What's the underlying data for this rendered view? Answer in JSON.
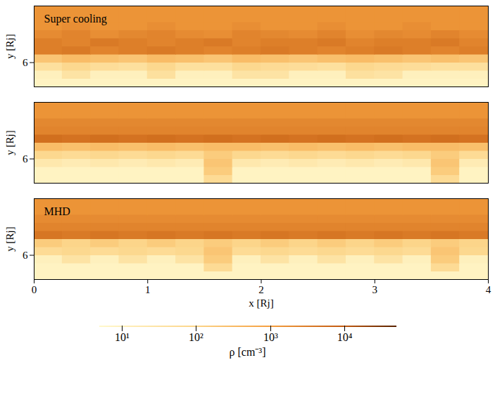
{
  "chart_data": [
    {
      "type": "heatmap",
      "title": "Super cooling",
      "ylabel": "y [Rj]",
      "xlim": [
        0,
        4
      ],
      "ylim": [
        5.85,
        6.35
      ],
      "yticks": [
        6
      ],
      "tick_labels": "y",
      "x_bins": [
        0,
        0.25,
        0.5,
        0.75,
        1,
        1.25,
        1.5,
        1.75,
        2,
        2.25,
        2.5,
        2.75,
        3,
        3.25,
        3.5,
        3.75,
        4
      ],
      "y_bins": [
        5.85,
        5.9,
        5.95,
        6.0,
        6.05,
        6.1,
        6.15,
        6.2,
        6.25,
        6.3,
        6.35
      ],
      "values": [
        [
          8,
          8,
          8,
          8,
          8,
          8,
          8,
          8,
          8,
          8,
          8,
          8,
          8,
          8,
          8,
          8
        ],
        [
          10,
          30,
          10,
          10,
          40,
          10,
          10,
          30,
          30,
          10,
          10,
          40,
          30,
          10,
          10,
          10
        ],
        [
          40,
          80,
          50,
          40,
          80,
          40,
          40,
          80,
          60,
          50,
          40,
          80,
          60,
          50,
          40,
          40
        ],
        [
          200,
          300,
          250,
          200,
          300,
          250,
          200,
          300,
          250,
          200,
          250,
          300,
          250,
          200,
          250,
          200
        ],
        [
          3000,
          3500,
          2500,
          3000,
          3500,
          3000,
          2500,
          3000,
          3500,
          3000,
          2500,
          3000,
          3500,
          3000,
          2500,
          3000
        ],
        [
          3000,
          2500,
          3500,
          3000,
          2500,
          3000,
          3500,
          2500,
          3000,
          3000,
          3500,
          2500,
          3000,
          3000,
          3500,
          2500
        ],
        [
          2000,
          2500,
          1800,
          2200,
          2500,
          2000,
          1800,
          2500,
          2200,
          2000,
          2500,
          1800,
          2200,
          2000,
          2500,
          2000
        ],
        [
          1500,
          1800,
          1500,
          1500,
          1800,
          1500,
          1500,
          1800,
          1500,
          1500,
          1800,
          1500,
          1500,
          1800,
          1500,
          1500
        ],
        [
          1500,
          1500,
          1500,
          1500,
          1500,
          1500,
          1500,
          1500,
          1500,
          1500,
          1500,
          1500,
          1500,
          1500,
          1500,
          1500
        ],
        [
          1500,
          1500,
          1500,
          1500,
          1500,
          1500,
          1500,
          1500,
          1500,
          1500,
          1500,
          1500,
          1500,
          1500,
          1500,
          1500
        ]
      ]
    },
    {
      "type": "heatmap",
      "ylabel": "y [Rj]",
      "xlim": [
        0,
        4
      ],
      "ylim": [
        5.85,
        6.35
      ],
      "yticks": [
        6
      ],
      "tick_labels": "y",
      "x_bins": [
        0,
        0.25,
        0.5,
        0.75,
        1,
        1.25,
        1.5,
        1.75,
        2,
        2.25,
        2.5,
        2.75,
        3,
        3.25,
        3.5,
        3.75,
        4
      ],
      "y_bins": [
        5.85,
        5.9,
        5.95,
        6.0,
        6.05,
        6.1,
        6.15,
        6.2,
        6.25,
        6.3,
        6.35
      ],
      "values": [
        [
          8,
          8,
          8,
          8,
          8,
          8,
          60,
          8,
          8,
          8,
          8,
          8,
          8,
          8,
          60,
          8
        ],
        [
          8,
          8,
          8,
          8,
          8,
          8,
          150,
          8,
          8,
          8,
          8,
          8,
          8,
          8,
          150,
          8
        ],
        [
          20,
          15,
          20,
          15,
          20,
          15,
          200,
          20,
          15,
          20,
          15,
          20,
          15,
          20,
          200,
          15
        ],
        [
          80,
          60,
          80,
          60,
          80,
          60,
          150,
          80,
          60,
          80,
          60,
          80,
          60,
          80,
          150,
          60
        ],
        [
          300,
          250,
          300,
          250,
          300,
          250,
          300,
          300,
          250,
          300,
          250,
          300,
          250,
          300,
          300,
          250
        ],
        [
          5000,
          4500,
          5000,
          4500,
          5000,
          4500,
          5000,
          4500,
          5000,
          4500,
          5000,
          4500,
          5000,
          4500,
          5000,
          4500
        ],
        [
          2500,
          2500,
          2500,
          2500,
          2500,
          2500,
          2500,
          2500,
          2500,
          2500,
          2500,
          2500,
          2500,
          2500,
          2500,
          2500
        ],
        [
          2200,
          2200,
          2200,
          2200,
          2200,
          2200,
          2200,
          2200,
          2200,
          2200,
          2200,
          2200,
          2200,
          2200,
          2200,
          2200
        ],
        [
          1500,
          1500,
          1500,
          1500,
          1500,
          1500,
          1500,
          1500,
          1500,
          1500,
          1500,
          1500,
          1500,
          1500,
          1500,
          1500
        ],
        [
          1500,
          1500,
          1500,
          1500,
          1500,
          1500,
          1500,
          1500,
          1500,
          1500,
          1500,
          1500,
          1500,
          1500,
          1500,
          1500
        ]
      ]
    },
    {
      "type": "heatmap",
      "title": "MHD",
      "xlabel": "x [Rj]",
      "ylabel": "y [Rj]",
      "xlim": [
        0,
        4
      ],
      "ylim": [
        5.85,
        6.35
      ],
      "xticks": [
        0,
        1,
        2,
        3,
        4
      ],
      "yticks": [
        6
      ],
      "x_bins": [
        0,
        0.25,
        0.5,
        0.75,
        1,
        1.25,
        1.5,
        1.75,
        2,
        2.25,
        2.5,
        2.75,
        3,
        3.25,
        3.5,
        3.75,
        4
      ],
      "y_bins": [
        5.85,
        5.9,
        5.95,
        6.0,
        6.05,
        6.1,
        6.15,
        6.2,
        6.25,
        6.3,
        6.35
      ],
      "values": [
        [
          8,
          8,
          8,
          8,
          8,
          8,
          8,
          8,
          8,
          8,
          8,
          8,
          8,
          8,
          8,
          8
        ],
        [
          8,
          8,
          8,
          8,
          8,
          8,
          60,
          8,
          8,
          8,
          8,
          8,
          8,
          8,
          60,
          8
        ],
        [
          10,
          30,
          10,
          30,
          10,
          30,
          150,
          10,
          30,
          10,
          30,
          10,
          30,
          10,
          150,
          10
        ],
        [
          60,
          80,
          60,
          80,
          60,
          80,
          200,
          60,
          80,
          60,
          80,
          60,
          80,
          60,
          200,
          80
        ],
        [
          150,
          100,
          150,
          100,
          150,
          100,
          150,
          100,
          150,
          100,
          150,
          100,
          150,
          100,
          150,
          100
        ],
        [
          4000,
          3500,
          4000,
          3500,
          4000,
          3500,
          4000,
          3500,
          4000,
          3500,
          4000,
          3500,
          4000,
          3500,
          4000,
          3500
        ],
        [
          2500,
          2500,
          2500,
          2500,
          2500,
          2500,
          2500,
          2500,
          2500,
          2500,
          2500,
          2500,
          2500,
          2500,
          2500,
          2500
        ],
        [
          2000,
          2000,
          2000,
          2000,
          2000,
          2000,
          2000,
          2000,
          2000,
          2000,
          2000,
          2000,
          2000,
          2000,
          2000,
          2000
        ],
        [
          1500,
          1500,
          1500,
          1500,
          1500,
          1500,
          1500,
          1500,
          1500,
          1500,
          1500,
          1500,
          1500,
          1500,
          1500,
          1500
        ],
        [
          1500,
          1500,
          1500,
          1500,
          1500,
          1500,
          1500,
          1500,
          1500,
          1500,
          1500,
          1500,
          1500,
          1500,
          1500,
          1500
        ]
      ]
    }
  ],
  "colorbar": {
    "label": "ρ [cm⁻³]",
    "log": true,
    "range": [
      5,
      50000
    ],
    "ticks": [
      {
        "value": 10,
        "label": "10¹"
      },
      {
        "value": 100,
        "label": "10²"
      },
      {
        "value": 1000,
        "label": "10³"
      },
      {
        "value": 10000,
        "label": "10⁴"
      }
    ]
  }
}
